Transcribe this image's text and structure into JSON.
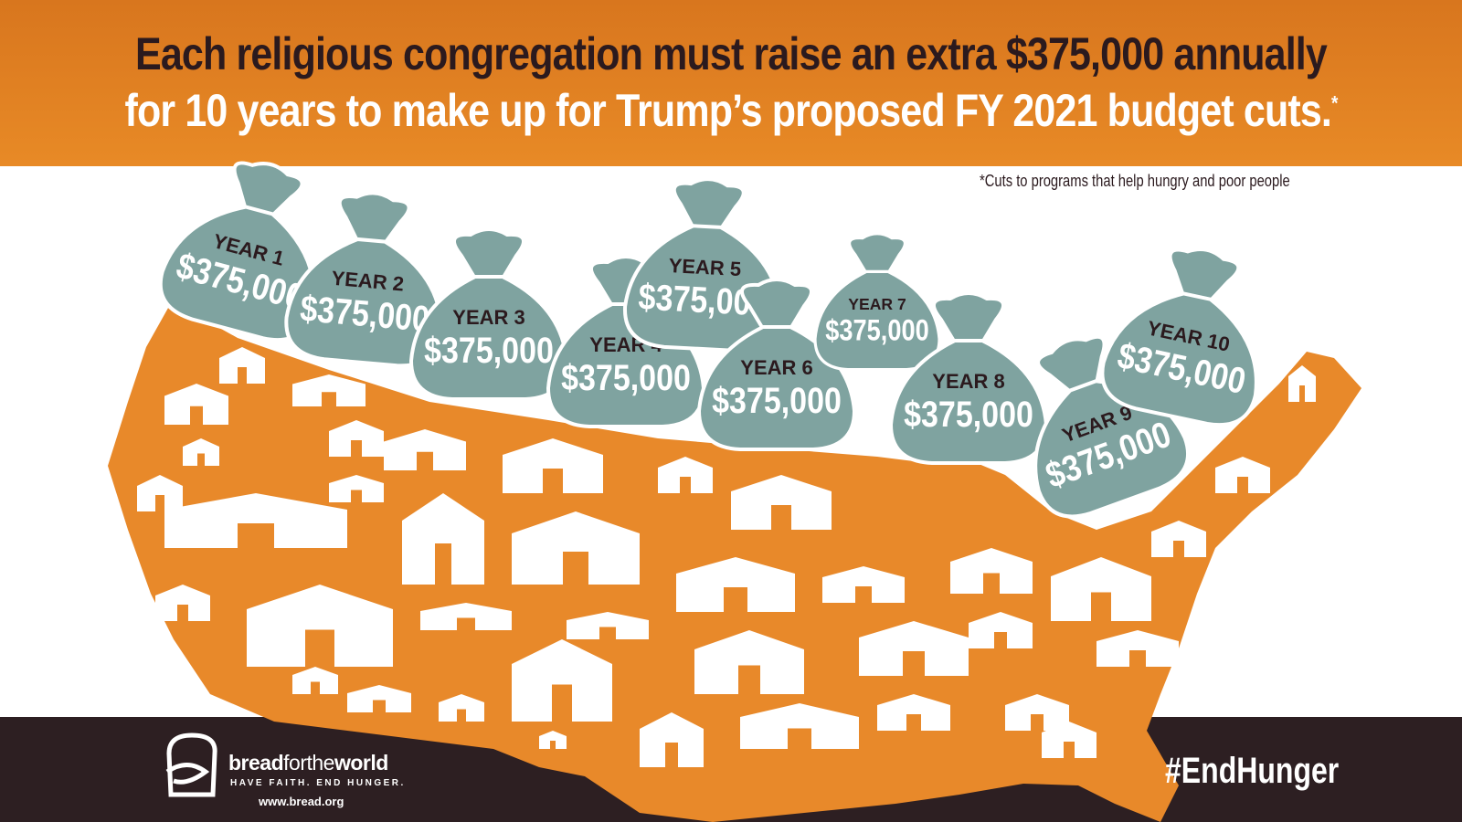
{
  "header": {
    "line1": "Each religious congregation must raise an extra $375,000 annually",
    "line2": "for 10 years to make up for Trump’s proposed FY 2021 budget cuts.",
    "line2_mark": "*"
  },
  "footnote": "*Cuts to programs that help hungry and poor people",
  "bags": [
    {
      "year": "YEAR 1",
      "amount": "$375,000"
    },
    {
      "year": "YEAR 2",
      "amount": "$375,000"
    },
    {
      "year": "YEAR 3",
      "amount": "$375,000"
    },
    {
      "year": "YEAR 4",
      "amount": "$375,000"
    },
    {
      "year": "YEAR 5",
      "amount": "$375,000"
    },
    {
      "year": "YEAR 6",
      "amount": "$375,000"
    },
    {
      "year": "YEAR 7",
      "amount": "$375,000"
    },
    {
      "year": "YEAR 8",
      "amount": "$375,000"
    },
    {
      "year": "YEAR 9",
      "amount": "$375,000"
    },
    {
      "year": "YEAR 10",
      "amount": "$375,000"
    }
  ],
  "logo": {
    "brand_bold1": "bread",
    "brand_light": "forthe",
    "brand_bold2": "world",
    "tagline": "HAVE FAITH. END HUNGER.",
    "url": "www.bread.org"
  },
  "hashtag": "#EndHunger",
  "colors": {
    "orange": "#e8892a",
    "dark": "#2d1f22",
    "bag": "#7fa3a0"
  }
}
